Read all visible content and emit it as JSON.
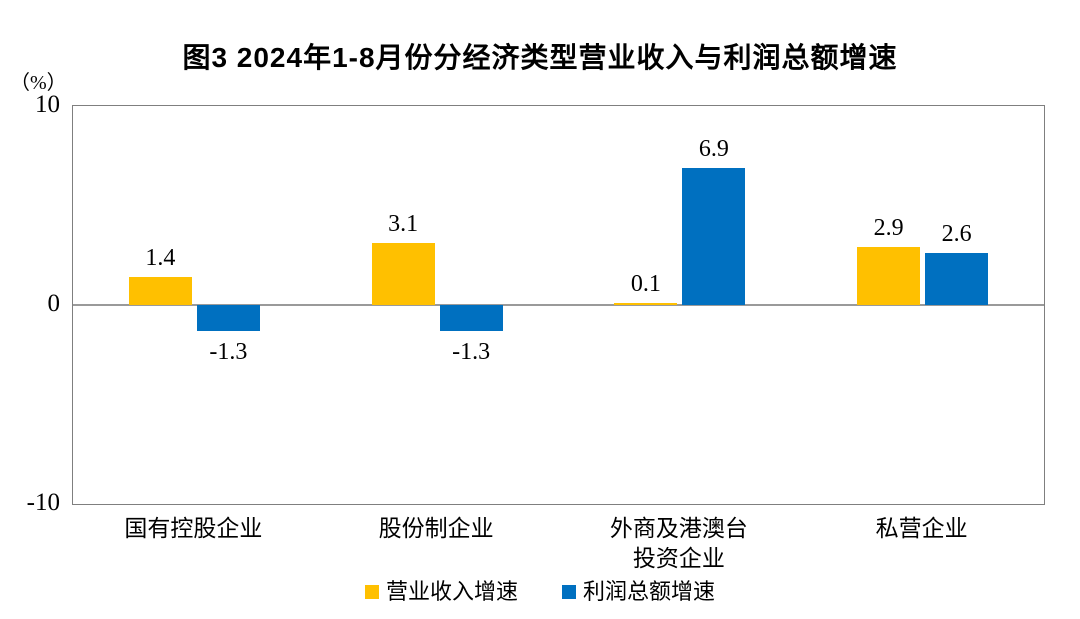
{
  "chart_data": {
    "type": "bar",
    "title": "图3  2024年1-8月份分经济类型营业收入与利润总额增速",
    "unit": "（%）",
    "categories": [
      "国有控股企业",
      "股份制企业",
      "外商及港澳台\n投资企业",
      "私营企业"
    ],
    "series": [
      {
        "name": "营业收入增速",
        "key": "revenue-growth",
        "color": "#FFC000",
        "values": [
          1.4,
          3.1,
          0.1,
          2.9
        ]
      },
      {
        "name": "利润总额增速",
        "key": "profit-growth",
        "color": "#0070C0",
        "values": [
          -1.3,
          -1.3,
          6.9,
          2.6
        ]
      }
    ],
    "ylim": [
      -10,
      10
    ],
    "yticks": [
      10,
      0,
      -10
    ],
    "value_labels": [
      "1.4",
      "-1.3",
      "3.1",
      "-1.3",
      "0.1",
      "6.9",
      "2.9",
      "2.6"
    ],
    "grid": "zero-line-only",
    "legend_position": "bottom-center"
  }
}
